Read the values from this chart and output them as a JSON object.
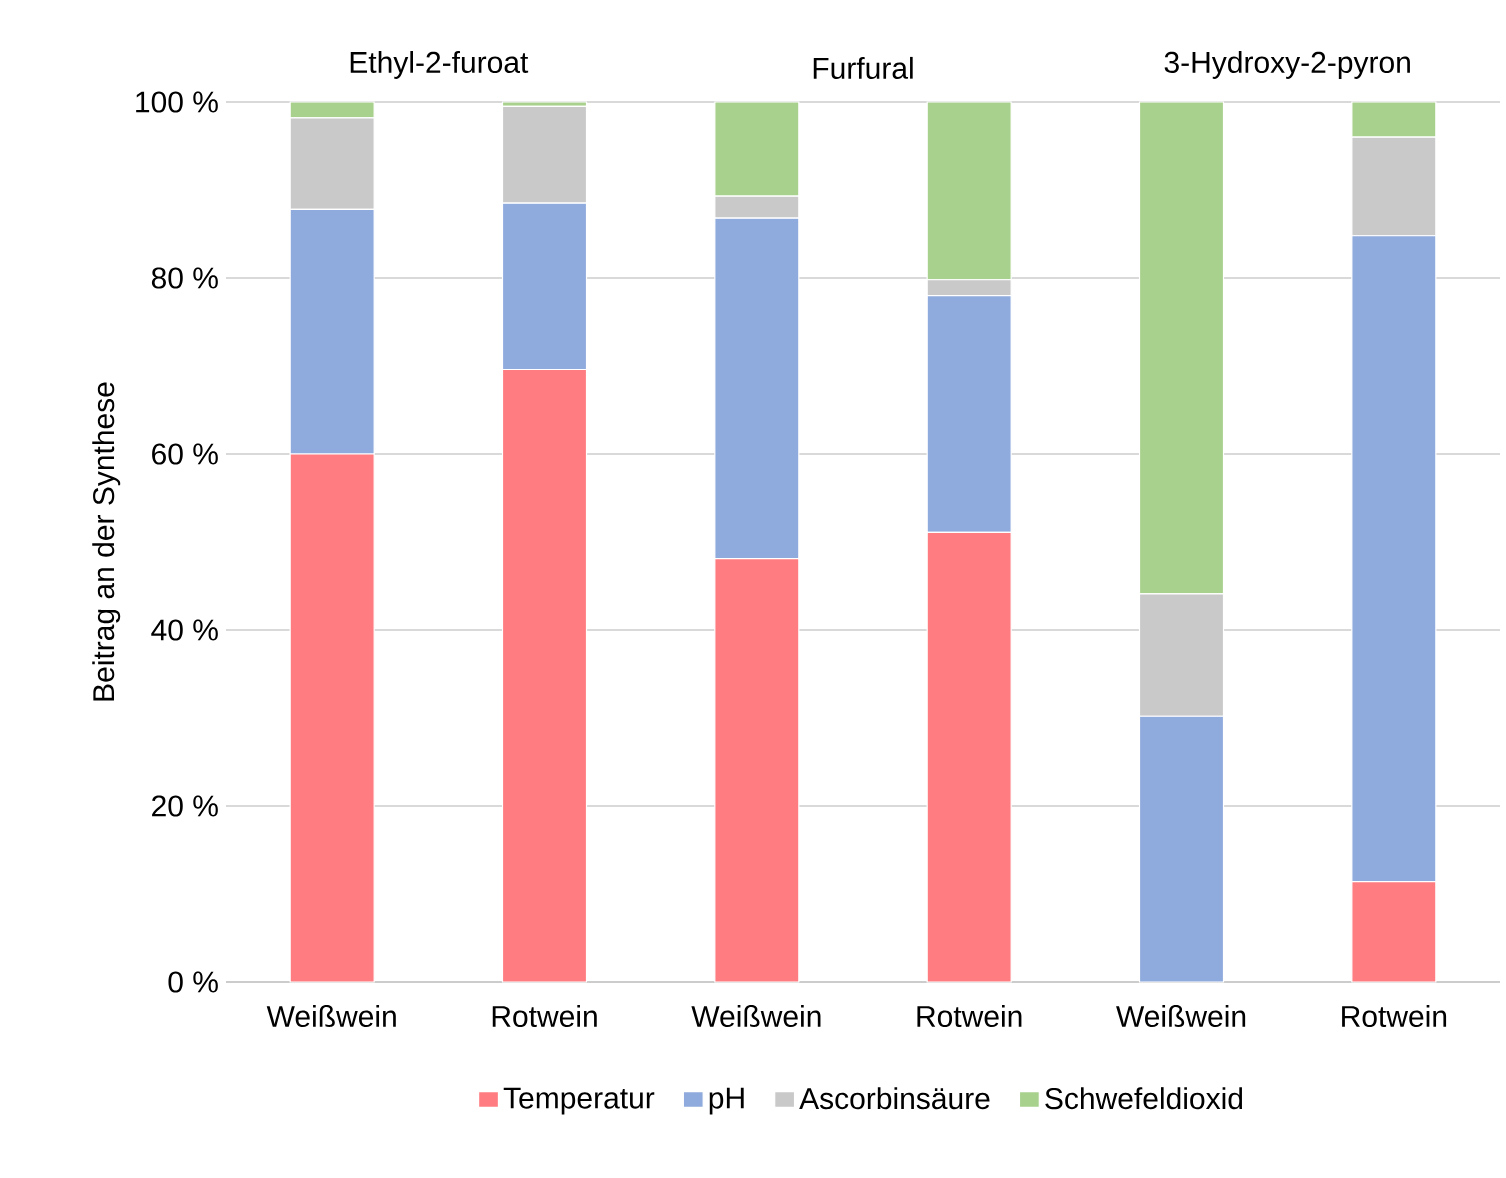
{
  "chart_data": {
    "type": "bar",
    "stacked": true,
    "ylabel": "Beitrag an der Synthese",
    "annotations": [
      "Ethyl-2-furoat",
      "Furfural",
      "3-Hydroxy-2-pyron"
    ],
    "categories": [
      "Weißwein",
      "Rotwein",
      "Weißwein",
      "Rotwein",
      "Weißwein",
      "Rotwein"
    ],
    "series": [
      {
        "name": "Temperatur",
        "color": "#ff7c80",
        "values": [
          60,
          69.6,
          48.1,
          51.1,
          0,
          11.4
        ]
      },
      {
        "name": "pH",
        "color": "#8faadc",
        "values": [
          27.8,
          18.9,
          38.7,
          26.9,
          30.2,
          73.4
        ]
      },
      {
        "name": "Ascorbinsäure",
        "color": "#c9c9c9",
        "values": [
          10.4,
          11,
          2.5,
          1.8,
          13.9,
          11.2
        ]
      },
      {
        "name": "Schwefeldioxid",
        "color": "#a9d18e",
        "values": [
          1.8,
          0.5,
          10.7,
          20.2,
          55.9,
          4
        ]
      }
    ],
    "ylim": [
      0,
      100
    ],
    "yticks": [
      {
        "value": 0,
        "label": "0 %"
      },
      {
        "value": 20,
        "label": "20 %"
      },
      {
        "value": 40,
        "label": "40 %"
      },
      {
        "value": 60,
        "label": "60 %"
      },
      {
        "value": 80,
        "label": "80 %"
      },
      {
        "value": 100,
        "label": "100 %"
      }
    ],
    "grid": "y",
    "legend": "bottom"
  }
}
